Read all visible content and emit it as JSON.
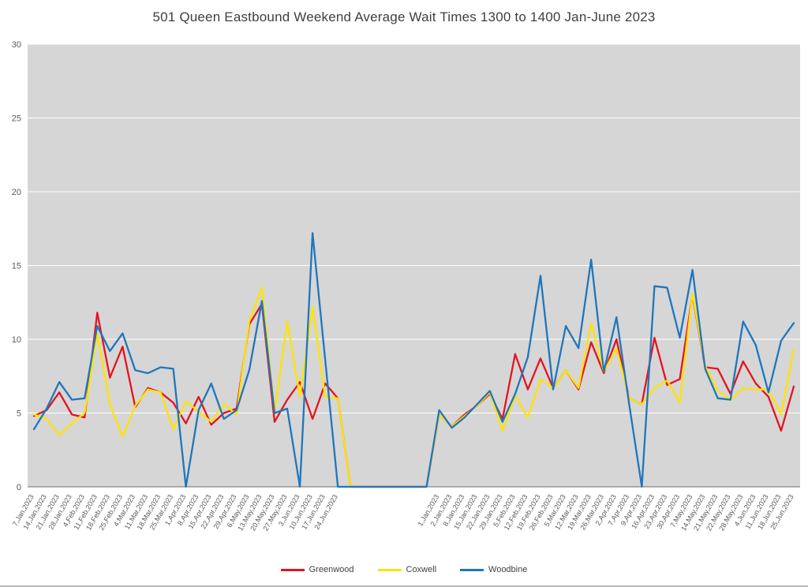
{
  "chart_data": {
    "type": "line",
    "title": "501 Queen Eastbound Weekend Average Wait Times 1300 to 1400 Jan-June 2023",
    "xlabel": "",
    "ylabel": "",
    "ylim": [
      0,
      30
    ],
    "yticks": [
      0,
      5,
      10,
      15,
      20,
      25,
      30
    ],
    "grid": true,
    "plot_bg": "#d6d6d6",
    "gridline_color": "#ffffff",
    "axis_color": "#6e6e6e",
    "tick_label_color": "#595959",
    "legend_position": "bottom",
    "categories": [
      "7,Jan,2023",
      "14,Jan,2023",
      "21,Jan,2023",
      "28,Jan,2023",
      "4,Feb,2023",
      "11,Feb,2023",
      "18,Feb,2023",
      "25,Feb,2023",
      "4,Mar,2023",
      "11,Mar,2023",
      "18,Mar,2023",
      "25,Mar,2023",
      "1,Apr,2023",
      "8,Apr,2023",
      "15,Apr,2023",
      "22,Apr,2023",
      "29,Apr,2023",
      "6,May,2023",
      "13,May,2023",
      "20,May,2023",
      "27,May,2023",
      "3,Jun,2023",
      "10,Jun,2023",
      "17,Jun,2023",
      "24,Jun,2023",
      "",
      "",
      "",
      "",
      "",
      "",
      "",
      "1,Jan,2023",
      "2,Jan,2023",
      "8,Jan,2023",
      "15,Jan,2023",
      "22,Jan,2023",
      "29,Jan,2023",
      "5,Feb,2023",
      "12,Feb,2023",
      "19,Feb,2023",
      "26,Feb,2023",
      "5,Mar,2023",
      "12,Mar,2023",
      "19,Mar,2023",
      "26,Mar,2023",
      "2,Apr,2023",
      "7,Apr,2023",
      "9,Apr,2023",
      "16,Apr,2023",
      "23,Apr,2023",
      "30,Apr,2023",
      "7,May,2023",
      "14,May,2023",
      "21,May,2023",
      "22,May,2023",
      "28,May,2023",
      "4,Jun,2023",
      "11,Jun,2023",
      "18,Jun,2023",
      "25,Jun,2023"
    ],
    "series": [
      {
        "name": "Greenwood",
        "color": "#e41420",
        "values": [
          4.8,
          5.2,
          6.4,
          4.9,
          4.7,
          11.8,
          7.4,
          9.5,
          5.4,
          6.7,
          6.4,
          5.7,
          4.3,
          6.1,
          4.2,
          5.0,
          5.3,
          11.0,
          12.4,
          4.4,
          5.9,
          7.1,
          4.6,
          7.0,
          6.0,
          0,
          0,
          0,
          0,
          0,
          0,
          0,
          4.9,
          4.1,
          4.9,
          5.5,
          6.3,
          4.6,
          9.0,
          6.6,
          8.7,
          6.7,
          7.9,
          6.6,
          9.8,
          7.7,
          10.0,
          6.0,
          5.6,
          10.1,
          6.9,
          7.3,
          13.0,
          8.1,
          8.0,
          6.3,
          8.5,
          7.0,
          6.1,
          3.8,
          6.8
        ]
      },
      {
        "name": "Coxwell",
        "color": "#ffe400",
        "values": [
          4.9,
          4.6,
          3.5,
          4.3,
          5.0,
          10.4,
          5.6,
          3.4,
          5.5,
          6.6,
          6.4,
          3.9,
          5.8,
          5.1,
          4.4,
          5.6,
          4.9,
          11.2,
          13.5,
          5.1,
          11.2,
          6.1,
          12.2,
          6.1,
          6.0,
          0,
          0,
          0,
          0,
          0,
          0,
          0,
          4.9,
          4.1,
          4.8,
          5.5,
          6.4,
          3.8,
          6.2,
          4.7,
          7.3,
          6.7,
          7.9,
          6.7,
          11.1,
          7.8,
          9.4,
          6.0,
          5.6,
          6.7,
          7.2,
          5.7,
          13.1,
          8.2,
          6.5,
          5.9,
          6.7,
          6.6,
          6.6,
          4.9,
          9.3
        ]
      },
      {
        "name": "Woodbine",
        "color": "#1f76bc",
        "values": [
          3.9,
          5.3,
          7.1,
          5.9,
          6.0,
          10.9,
          9.2,
          10.4,
          7.9,
          7.7,
          8.1,
          8.0,
          0,
          5.2,
          7.0,
          4.6,
          5.2,
          7.9,
          12.6,
          5.0,
          5.3,
          0,
          17.2,
          8.6,
          0,
          0,
          0,
          0,
          0,
          0,
          0,
          0,
          5.2,
          4.0,
          4.7,
          5.6,
          6.5,
          4.4,
          6.3,
          8.8,
          14.3,
          6.6,
          10.9,
          9.4,
          15.4,
          7.8,
          11.5,
          5.6,
          0,
          13.6,
          13.5,
          10.1,
          14.7,
          8.0,
          6.0,
          5.9,
          11.2,
          9.6,
          6.4,
          9.9,
          11.1
        ]
      }
    ]
  }
}
